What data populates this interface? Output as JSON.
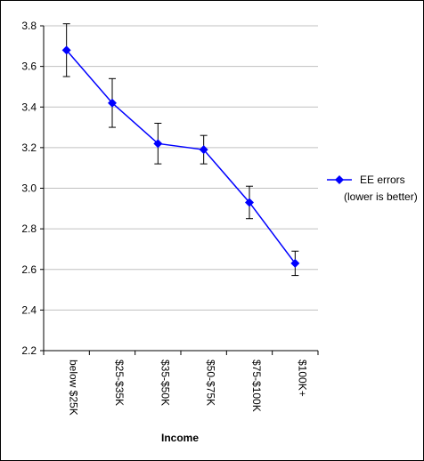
{
  "chart_data": {
    "type": "line",
    "title": "",
    "xlabel": "Income",
    "ylabel": "",
    "categories": [
      "below $25K",
      "$25-$35K",
      "$35-$50K",
      "$50-$75K",
      "$75-$100K",
      "$100K+"
    ],
    "series": [
      {
        "name": "EE errors",
        "values": [
          3.68,
          3.42,
          3.22,
          3.19,
          2.93,
          2.63
        ],
        "error_low": [
          3.55,
          3.3,
          3.12,
          3.12,
          2.85,
          2.57
        ],
        "error_high": [
          3.81,
          3.54,
          3.32,
          3.26,
          3.01,
          2.69
        ],
        "color": "#0000FF",
        "marker": "diamond"
      }
    ],
    "legend": {
      "lines": [
        "EE errors",
        "(lower is better)"
      ],
      "placement": "right"
    },
    "ylim": [
      2.2,
      3.8
    ],
    "yticks": [
      2.2,
      2.4,
      2.6,
      2.8,
      3.0,
      3.2,
      3.4,
      3.6,
      3.8
    ],
    "ytick_labels": [
      "2.2",
      "2.4",
      "2.6",
      "2.8",
      "3.0",
      "3.2",
      "3.4",
      "3.6",
      "3.8"
    ],
    "grid": "horizontal",
    "gridline_color": "#C0C0C0",
    "errorbar_color": "#000000"
  }
}
